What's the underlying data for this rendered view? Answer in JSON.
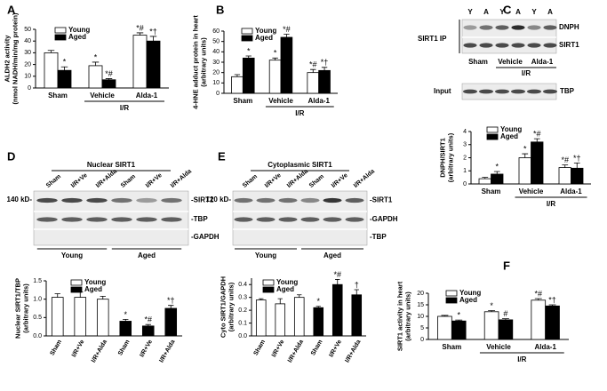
{
  "panel_labels": [
    "A",
    "B",
    "C",
    "D",
    "E",
    "F"
  ],
  "blots": {
    "C": {
      "ip_label": "SIRT1 IP",
      "lanes": [
        "Y",
        "A",
        "Y",
        "A",
        "Y",
        "A"
      ],
      "bands": [
        "DNPH",
        "SIRT1"
      ],
      "input_label": "Input",
      "input_band": "TBP",
      "groups": [
        "Sham",
        "Vehicle",
        "Alda-1"
      ],
      "group_label": "I/R"
    },
    "D": {
      "title": "Nuclear SIRT1",
      "lanes": [
        "Sham",
        "I/R+Ve",
        "I/R+Alda",
        "Sham",
        "I/R+Ve",
        "I/R+Alda"
      ],
      "marker": "140 kD-",
      "bands": [
        "-SIRT1",
        "-TBP",
        "-GAPDH"
      ],
      "groups": [
        "Young",
        "Aged"
      ]
    },
    "E": {
      "title": "Cytoplasmic SIRT1",
      "lanes": [
        "Sham",
        "I/R+Ve",
        "I/R+Alda",
        "Sham",
        "I/R+Ve",
        "I/R+Alda"
      ],
      "marker": "120 kD-",
      "bands": [
        "-SIRT1",
        "-GAPDH",
        "-TBP"
      ],
      "groups": [
        "Young",
        "Aged"
      ]
    }
  },
  "chart_data": [
    {
      "type": "bar",
      "ylabel": [
        "ALDH2 activity",
        "(nmol NADH/min/mg protein)"
      ],
      "categories": [
        "Sham",
        "Vehicle",
        "Alda-1"
      ],
      "group_label": "I/R",
      "ylim": [
        0,
        50
      ],
      "yticks": [
        0,
        10,
        20,
        30,
        40,
        50
      ],
      "series": [
        {
          "name": "Young",
          "color": "#ffffff",
          "values": [
            30,
            19,
            45
          ],
          "errors": [
            2,
            3,
            2
          ],
          "annotations": [
            null,
            "*",
            "*#"
          ]
        },
        {
          "name": "Aged",
          "color": "#000000",
          "values": [
            15,
            7,
            40
          ],
          "errors": [
            3,
            1,
            4
          ],
          "annotations": [
            "*",
            "*#",
            "*†"
          ]
        }
      ]
    },
    {
      "type": "bar",
      "ylabel": [
        "4-HNE adduct protein in heart",
        "(arbitrary units)"
      ],
      "categories": [
        "Sham",
        "Vehicle",
        "Alda-1"
      ],
      "group_label": "I/R",
      "ylim": [
        0,
        60
      ],
      "yticks": [
        0,
        10,
        20,
        30,
        40,
        50,
        60
      ],
      "series": [
        {
          "name": "Young",
          "color": "#ffffff",
          "values": [
            16,
            32,
            20
          ],
          "errors": [
            2,
            2,
            3
          ],
          "annotations": [
            null,
            "*",
            "*#"
          ]
        },
        {
          "name": "Aged",
          "color": "#000000",
          "values": [
            34,
            54,
            22
          ],
          "errors": [
            2,
            3,
            3
          ],
          "annotations": [
            "*",
            "*#",
            "*†"
          ]
        }
      ]
    },
    {
      "type": "bar",
      "ylabel": [
        "DNPH/SIRT1",
        "(arbitrary units)"
      ],
      "categories": [
        "Sham",
        "Vehicle",
        "Alda-1"
      ],
      "group_label": "I/R",
      "ylim": [
        0,
        4
      ],
      "yticks": [
        0,
        1,
        2,
        3,
        4
      ],
      "series": [
        {
          "name": "Young",
          "color": "#ffffff",
          "values": [
            0.4,
            2.0,
            1.25
          ],
          "errors": [
            0.1,
            0.3,
            0.2
          ],
          "annotations": [
            null,
            "*",
            "*#"
          ]
        },
        {
          "name": "Aged",
          "color": "#000000",
          "values": [
            0.75,
            3.2,
            1.2
          ],
          "errors": [
            0.2,
            0.25,
            0.4
          ],
          "annotations": [
            "*",
            "*#",
            "*†"
          ]
        }
      ]
    },
    {
      "type": "bar",
      "ylabel": [
        "Nuclear SIRT1/TBP",
        "(arbitrary units)"
      ],
      "categories": [
        "Sham",
        "I/R+Ve",
        "I/R+Alda",
        "Sham",
        "I/R+Ve",
        "I/R+Alda"
      ],
      "ylim": [
        0,
        1.5
      ],
      "yticks": [
        {
          "value": 0,
          "label": "0.0"
        },
        0.5,
        {
          "value": 1,
          "label": "1.0"
        },
        1.5
      ],
      "series": [
        {
          "name": "Young",
          "color": "#ffffff",
          "values": [
            1.05,
            1.05,
            1.0,
            null,
            null,
            null
          ],
          "errors": [
            0.1,
            0.15,
            0.08,
            null,
            null,
            null
          ],
          "annotations": [
            null,
            null,
            null,
            null,
            null,
            null
          ]
        },
        {
          "name": "Aged",
          "color": "#000000",
          "values": [
            null,
            null,
            null,
            0.4,
            0.27,
            0.75
          ],
          "errors": [
            null,
            null,
            null,
            0.05,
            0.04,
            0.08
          ],
          "annotations": [
            null,
            null,
            null,
            "*",
            "*#",
            "*†"
          ]
        }
      ]
    },
    {
      "type": "bar",
      "ylabel": [
        "Cyto SIRT1/GAPDH",
        "(arbitrary units)"
      ],
      "categories": [
        "Sham",
        "I/R+Ve",
        "I/R+Alda",
        "Sham",
        "I/R+Ve",
        "I/R+Alda"
      ],
      "ylim": [
        0,
        0.45
      ],
      "yticks": [
        {
          "value": 0,
          "label": "0.0"
        },
        0.1,
        0.2,
        0.3,
        0.4
      ],
      "series": [
        {
          "name": "Young",
          "color": "#ffffff",
          "values": [
            0.28,
            0.25,
            0.3,
            null,
            null,
            null
          ],
          "errors": [
            0.01,
            0.04,
            0.02,
            null,
            null,
            null
          ],
          "annotations": [
            null,
            null,
            null,
            null,
            null,
            null
          ]
        },
        {
          "name": "Aged",
          "color": "#000000",
          "values": [
            null,
            null,
            null,
            0.22,
            0.4,
            0.32
          ],
          "errors": [
            null,
            null,
            null,
            0.01,
            0.04,
            0.04
          ],
          "annotations": [
            null,
            null,
            null,
            "*",
            "*#",
            "†"
          ]
        }
      ]
    },
    {
      "type": "bar",
      "ylabel": [
        "SIRT1 activity in heart",
        "(arbitrary units)"
      ],
      "categories": [
        "Sham",
        "Vehicle",
        "Alda-1"
      ],
      "group_label": "I/R",
      "ylim": [
        0,
        20
      ],
      "yticks": [
        0,
        5,
        10,
        15,
        20
      ],
      "series": [
        {
          "name": "Young",
          "color": "#ffffff",
          "values": [
            10,
            12,
            17
          ],
          "errors": [
            0.4,
            0.5,
            0.7
          ],
          "annotations": [
            null,
            "*",
            "*#"
          ]
        },
        {
          "name": "Aged",
          "color": "#000000",
          "values": [
            8,
            8.5,
            14.5
          ],
          "errors": [
            0.4,
            0.5,
            0.5
          ],
          "annotations": [
            "*",
            "#",
            "*†"
          ]
        }
      ]
    }
  ]
}
